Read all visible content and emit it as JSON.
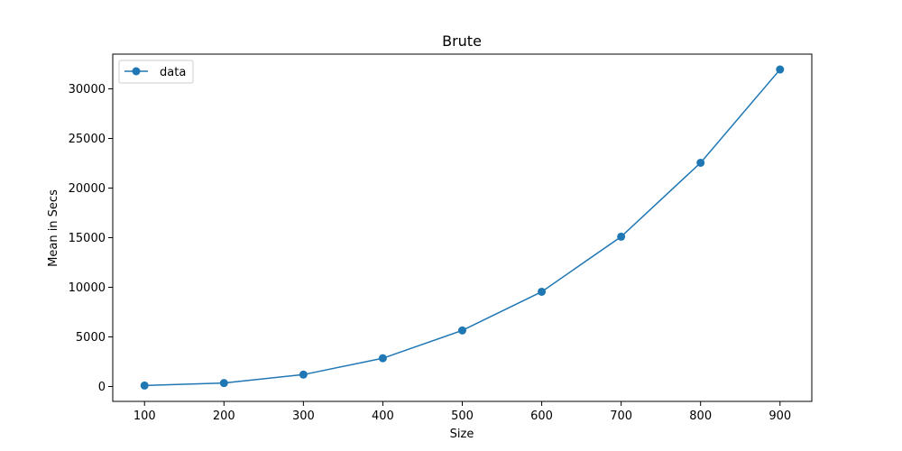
{
  "chart_data": {
    "type": "line",
    "title": "Brute",
    "xlabel": "Size",
    "ylabel": "Mean in Secs",
    "x": [
      100,
      200,
      300,
      400,
      500,
      600,
      700,
      800,
      900
    ],
    "series": [
      {
        "name": "data",
        "values": [
          100,
          350,
          1200,
          2850,
          5650,
          9550,
          15100,
          22550,
          31950
        ],
        "color": "#1f77b4",
        "marker": "circle"
      }
    ],
    "xlim": [
      60,
      940
    ],
    "ylim": [
      -1500,
      33500
    ],
    "xticks": [
      100,
      200,
      300,
      400,
      500,
      600,
      700,
      800,
      900
    ],
    "yticks": [
      0,
      5000,
      10000,
      15000,
      20000,
      25000,
      30000
    ],
    "xtick_labels": [
      "100",
      "200",
      "300",
      "400",
      "500",
      "600",
      "700",
      "800",
      "900"
    ],
    "ytick_labels": [
      "0",
      "5000",
      "10000",
      "15000",
      "20000",
      "25000",
      "30000"
    ],
    "grid": false,
    "legend_position": "top-left"
  }
}
